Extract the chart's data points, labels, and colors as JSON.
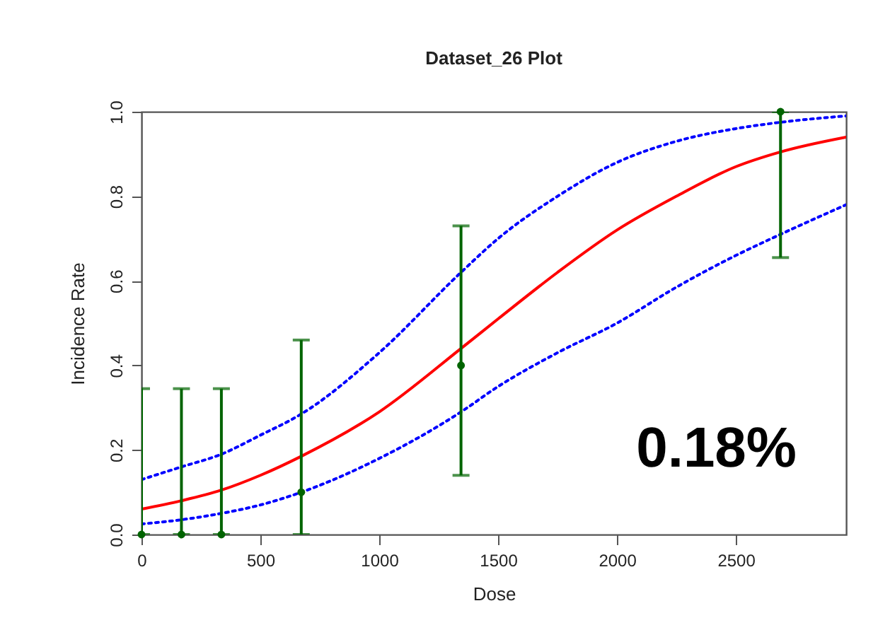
{
  "chart_data": {
    "type": "scatter",
    "title": "Dataset_26 Plot",
    "xlabel": "Dose",
    "ylabel": "Incidence Rate",
    "xlim": [
      0,
      2964
    ],
    "ylim": [
      0,
      1
    ],
    "xticks": [
      0,
      500,
      1000,
      1500,
      2000,
      2500
    ],
    "yticks": [
      {
        "value": 0,
        "label": "0.0"
      },
      0.2,
      0.4,
      0.6,
      0.8,
      {
        "value": 1,
        "label": "1.0"
      }
    ],
    "grid": false,
    "annotations": [
      "0.18%"
    ],
    "series": [
      {
        "type": "line",
        "color": "#ff0000",
        "line_style": "solid",
        "marker": "none",
        "x": [
          0,
          168,
          336,
          500,
          672,
          1000,
          1344,
          1500,
          1750,
          2000,
          2250,
          2500,
          2688,
          2964
        ],
        "values": [
          0.06,
          0.08,
          0.105,
          0.14,
          0.185,
          0.29,
          0.44,
          0.51,
          0.62,
          0.72,
          0.8,
          0.87,
          0.905,
          0.94
        ]
      },
      {
        "type": "line",
        "color": "#0000ff",
        "line_style": "dotted",
        "marker": "none",
        "x": [
          0,
          168,
          336,
          500,
          672,
          1000,
          1344,
          1500,
          1750,
          2000,
          2250,
          2500,
          2688,
          2964
        ],
        "values": [
          0.13,
          0.16,
          0.19,
          0.235,
          0.285,
          0.43,
          0.62,
          0.7,
          0.8,
          0.88,
          0.93,
          0.96,
          0.975,
          0.99
        ]
      },
      {
        "type": "line",
        "color": "#0000ff",
        "line_style": "dotted",
        "marker": "none",
        "x": [
          0,
          168,
          336,
          500,
          672,
          1000,
          1344,
          1500,
          1750,
          2000,
          2250,
          2500,
          2688,
          2964
        ],
        "values": [
          0.025,
          0.035,
          0.05,
          0.07,
          0.1,
          0.18,
          0.29,
          0.35,
          0.43,
          0.5,
          0.585,
          0.66,
          0.71,
          0.78
        ]
      },
      {
        "color": "#006400",
        "marker": "circle",
        "x": [
          0,
          168,
          336,
          672,
          1344,
          2688
        ],
        "values": [
          0,
          0,
          0,
          0.1,
          0.4,
          1.0
        ],
        "errors": [
          [
            0,
            0.345
          ],
          [
            0,
            0.345
          ],
          [
            0,
            0.345
          ],
          [
            0,
            0.46
          ],
          [
            0.14,
            0.73
          ],
          [
            0.655,
            1.0
          ]
        ]
      }
    ]
  }
}
